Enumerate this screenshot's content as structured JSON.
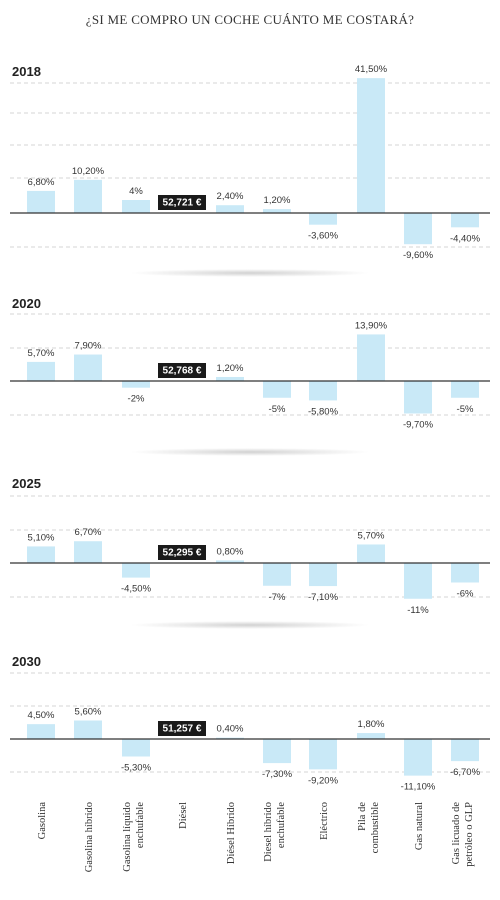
{
  "title": "¿SI ME COMPRO UN COCHE CUÁNTO ME COSTARÁ?",
  "colors": {
    "bar": "#c9e9f7",
    "bar_highlight": "#c9e9f7",
    "badge": "#1a1a1a",
    "grid": "#c8c8c8",
    "baseline": "#333333"
  },
  "chart_data": {
    "type": "bar",
    "categories": [
      "Gasolina",
      "Gasolina híbrido",
      "Gasolina líquido enchufable",
      "Diésel",
      "Diésel Híbrido",
      "Diesel híbrido enchufable",
      "Eléctrico",
      "Pila de combustible",
      "Gas natural",
      "Gas licuado de petróleo o GLP"
    ],
    "category_lines": [
      [
        "Gasolina"
      ],
      [
        "Gasolina híbrido"
      ],
      [
        "Gasolina líquido",
        "enchufable"
      ],
      [
        "Diésel"
      ],
      [
        "Diésel Híbrido"
      ],
      [
        "Diesel híbrido",
        "enchufable"
      ],
      [
        "Eléctrico"
      ],
      [
        "Pila de",
        "combustible"
      ],
      [
        "Gas natural"
      ],
      [
        "Gas licuado de",
        "petróleo o GLP"
      ]
    ],
    "grid": true,
    "panels": [
      {
        "year": "2018",
        "reference": "52,721 €",
        "values": [
          6.8,
          10.2,
          4.0,
          null,
          2.4,
          1.2,
          -3.6,
          41.5,
          -9.6,
          -4.4
        ],
        "labels": [
          "6,80%",
          "10,20%",
          "4%",
          "",
          "2,40%",
          "1,20%",
          "-3,60%",
          "41,50%",
          "-9,60%",
          "-4,40%"
        ]
      },
      {
        "year": "2020",
        "reference": "52,768 €",
        "values": [
          5.7,
          7.9,
          -2.0,
          null,
          1.2,
          -5.0,
          -5.8,
          13.9,
          -9.7,
          -5.0
        ],
        "labels": [
          "5,70%",
          "7,90%",
          "-2%",
          "",
          "1,20%",
          "-5%",
          "-5,80%",
          "13,90%",
          "-9,70%",
          "-5%"
        ]
      },
      {
        "year": "2025",
        "reference": "52,295 €",
        "values": [
          5.1,
          6.7,
          -4.5,
          null,
          0.8,
          -7.0,
          -7.1,
          5.7,
          -11.0,
          -6.0
        ],
        "labels": [
          "5,10%",
          "6,70%",
          "-4,50%",
          "",
          "0,80%",
          "-7%",
          "-7,10%",
          "5,70%",
          "-11%",
          "-6%"
        ]
      },
      {
        "year": "2030",
        "reference": "51,257 €",
        "values": [
          4.5,
          5.6,
          -5.3,
          null,
          0.4,
          -7.3,
          -9.2,
          1.8,
          -11.1,
          -6.7
        ],
        "labels": [
          "4,50%",
          "5,60%",
          "-5,30%",
          "",
          "0,40%",
          "-7,30%",
          "-9,20%",
          "1,80%",
          "-11,10%",
          "-6,70%"
        ]
      }
    ]
  }
}
